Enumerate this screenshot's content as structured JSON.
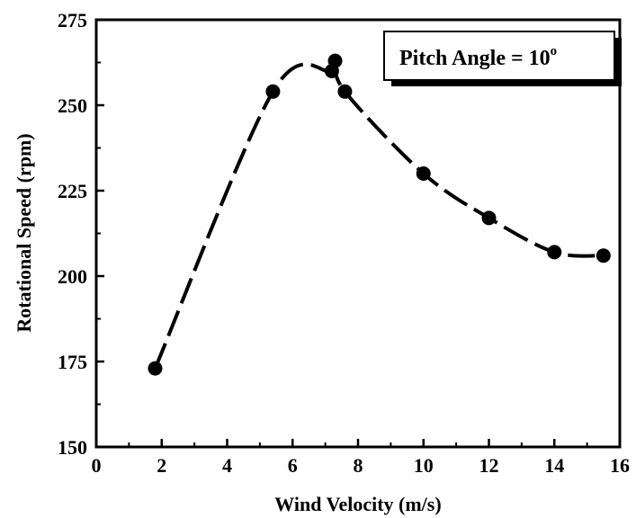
{
  "chart_data": {
    "type": "line",
    "title": "",
    "xlabel": "Wind Velocity (m/s)",
    "ylabel": "Rotational Speed (rpm)",
    "xlim": [
      0,
      16
    ],
    "ylim": [
      150,
      275
    ],
    "x_ticks": [
      "0",
      "2",
      "4",
      "6",
      "8",
      "10",
      "12",
      "14",
      "16"
    ],
    "y_ticks": [
      "150",
      "175",
      "200",
      "225",
      "250",
      "275"
    ],
    "grid": false,
    "annotation": {
      "text": "Pitch Angle = 10",
      "superscript": "o"
    },
    "series": [
      {
        "marker": "circle",
        "line_style": "dashed-smooth",
        "color": "#000000",
        "x": [
          1.8,
          5.4,
          7.2,
          7.3,
          7.6,
          10.0,
          12.0,
          14.0,
          15.5
        ],
        "y": [
          173,
          254,
          260,
          263,
          254,
          230,
          217,
          207,
          206
        ]
      }
    ]
  }
}
